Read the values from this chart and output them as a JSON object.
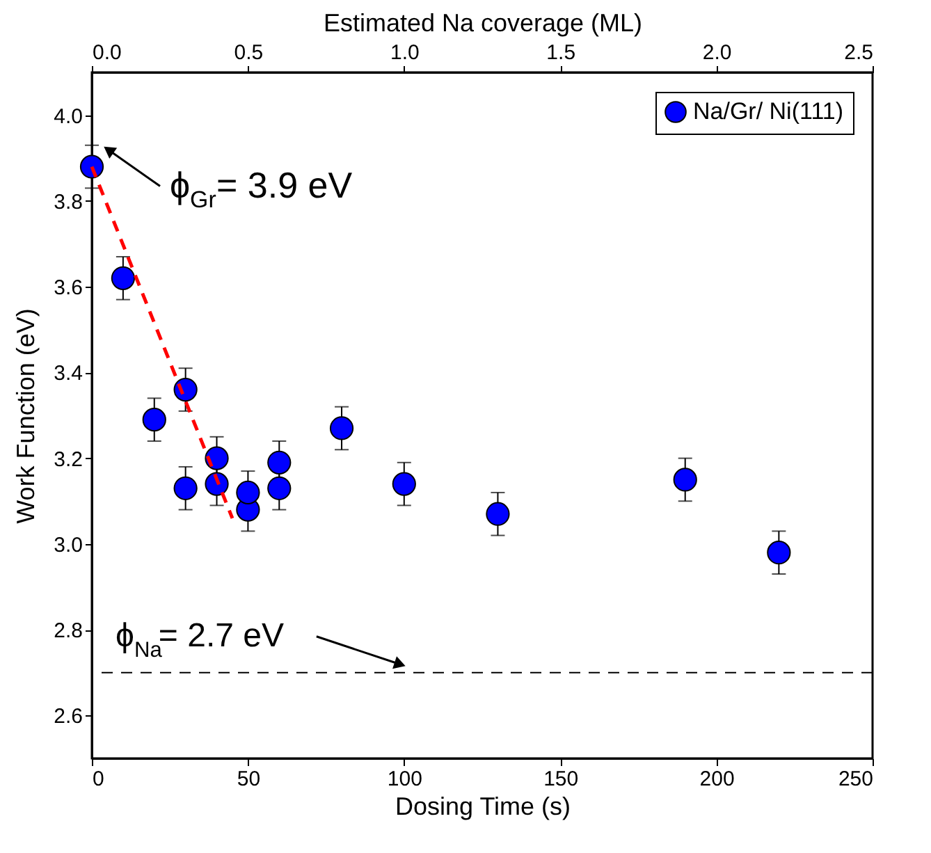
{
  "chart_data": {
    "type": "scatter",
    "xlabel": "Dosing Time (s)",
    "ylabel": "Work Function (eV)",
    "x2label": "Estimated Na coverage (ML)",
    "xlim": [
      0,
      250
    ],
    "xticks": [
      0,
      50,
      100,
      150,
      200,
      250
    ],
    "ylim": [
      2.5,
      4.1
    ],
    "yticks": [
      2.6,
      2.8,
      {
        "value": 3,
        "label": "3.0"
      },
      3.2,
      3.4,
      3.6,
      3.8,
      {
        "value": 4,
        "label": "4.0"
      }
    ],
    "x2lim": [
      0,
      2.5
    ],
    "x2ticks": [
      {
        "value": 0,
        "label": "0.0"
      },
      0.5,
      {
        "value": 1,
        "label": "1.0"
      },
      1.5,
      {
        "value": 2,
        "label": "2.0"
      },
      2.5
    ],
    "legend": "top right",
    "marker": "circle",
    "series": [
      {
        "name": "Na/Gr/ Ni(111)",
        "color": "#0000ff",
        "x": [
          0,
          10,
          20,
          30,
          30,
          40,
          40,
          50,
          50,
          60,
          60,
          80,
          100,
          130,
          190,
          220
        ],
        "values": [
          3.88,
          3.62,
          3.29,
          3.36,
          3.13,
          3.2,
          3.14,
          3.08,
          3.12,
          3.19,
          3.13,
          3.27,
          3.14,
          3.07,
          3.15,
          2.98
        ],
        "errors": [
          0.05,
          0.05,
          0.05,
          0.05,
          0.05,
          0.05,
          0.05,
          0.05,
          0.05,
          0.05,
          0.05,
          0.05,
          0.05,
          0.05,
          0.05,
          0.05
        ]
      },
      {
        "type": "line",
        "color": "#ff0000",
        "line_style": "dashed",
        "marker": "none",
        "x": [
          0,
          45
        ],
        "values": [
          3.88,
          3.06
        ]
      }
    ],
    "ref_lines": [
      {
        "axis": "y",
        "value": 2.7,
        "label": "ϕ$_{Na}$= 2.7 eV",
        "color": "#000000",
        "line_style": "dashed"
      }
    ],
    "annotations": [
      {
        "text": "ϕ$_{Gr}$= 3.9 eV",
        "x": 0,
        "y": 3.88
      }
    ]
  }
}
